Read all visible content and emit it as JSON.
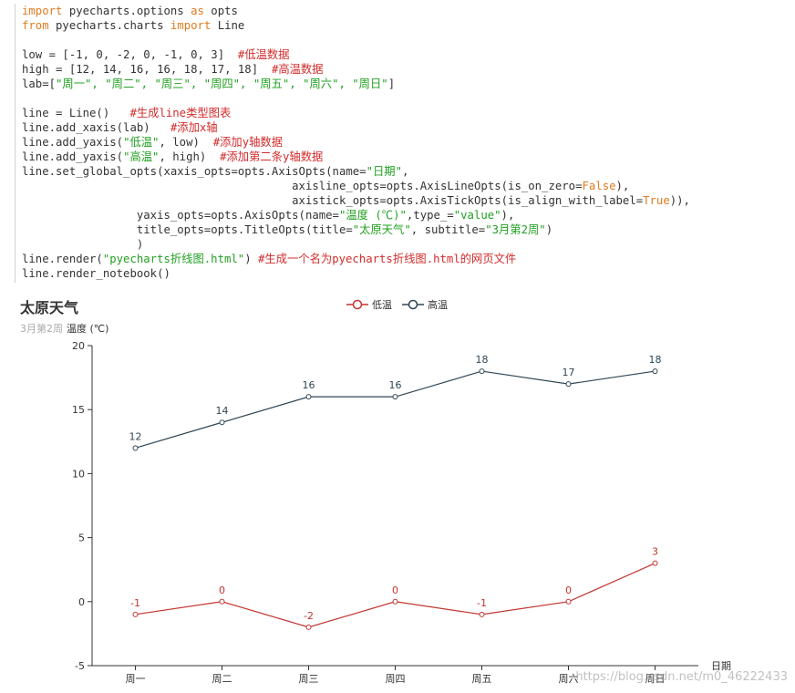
{
  "code_lines": [
    [
      {
        "t": "import",
        "c": "kw"
      },
      {
        "t": " pyecharts.options ",
        "c": ""
      },
      {
        "t": "as",
        "c": "kw"
      },
      {
        "t": " opts",
        "c": ""
      }
    ],
    [
      {
        "t": "from",
        "c": "kw"
      },
      {
        "t": " pyecharts.charts ",
        "c": ""
      },
      {
        "t": "import",
        "c": "kw"
      },
      {
        "t": " Line",
        "c": ""
      }
    ],
    [],
    [
      {
        "t": "low = [-1, 0, -2, 0, -1, 0, 3]  ",
        "c": ""
      },
      {
        "t": "#低温数据",
        "c": "cm"
      }
    ],
    [
      {
        "t": "high = [12, 14, 16, 16, 18, 17, 18]  ",
        "c": ""
      },
      {
        "t": "#高温数据",
        "c": "cm"
      }
    ],
    [
      {
        "t": "lab=[",
        "c": ""
      },
      {
        "t": "\"周一\", \"周二\", \"周三\", \"周四\", \"周五\", \"周六\", \"周日\"",
        "c": "str"
      },
      {
        "t": "]",
        "c": ""
      }
    ],
    [],
    [
      {
        "t": "line = Line()   ",
        "c": ""
      },
      {
        "t": "#生成line类型图表",
        "c": "cm"
      }
    ],
    [
      {
        "t": "line.add_xaxis(lab)   ",
        "c": ""
      },
      {
        "t": "#添加x轴",
        "c": "cm"
      }
    ],
    [
      {
        "t": "line.add_yaxis(",
        "c": ""
      },
      {
        "t": "\"低温\"",
        "c": "str"
      },
      {
        "t": ", low)  ",
        "c": ""
      },
      {
        "t": "#添加y轴数据",
        "c": "cm"
      }
    ],
    [
      {
        "t": "line.add_yaxis(",
        "c": ""
      },
      {
        "t": "\"高温\"",
        "c": "str"
      },
      {
        "t": ", high)  ",
        "c": ""
      },
      {
        "t": "#添加第二条y轴数据",
        "c": "cm"
      }
    ],
    [
      {
        "t": "line.set_global_opts(xaxis_opts=opts.AxisOpts(name=",
        "c": ""
      },
      {
        "t": "\"日期\"",
        "c": "str"
      },
      {
        "t": ",",
        "c": ""
      }
    ],
    [
      {
        "t": "                                        axisline_opts=opts.AxisLineOpts(is_on_zero=",
        "c": ""
      },
      {
        "t": "False",
        "c": "bool"
      },
      {
        "t": "),",
        "c": ""
      }
    ],
    [
      {
        "t": "                                        axistick_opts=opts.AxisTickOpts(is_align_with_label=",
        "c": ""
      },
      {
        "t": "True",
        "c": "bool"
      },
      {
        "t": ")),",
        "c": ""
      }
    ],
    [
      {
        "t": "                 yaxis_opts=opts.AxisOpts(name=",
        "c": ""
      },
      {
        "t": "\"温度 (℃)\"",
        "c": "str"
      },
      {
        "t": ",type_=",
        "c": ""
      },
      {
        "t": "\"value\"",
        "c": "str"
      },
      {
        "t": "),",
        "c": ""
      }
    ],
    [
      {
        "t": "                 title_opts=opts.TitleOpts(title=",
        "c": ""
      },
      {
        "t": "\"太原天气\"",
        "c": "str"
      },
      {
        "t": ", subtitle=",
        "c": ""
      },
      {
        "t": "\"3月第2周\"",
        "c": "str"
      },
      {
        "t": ")",
        "c": ""
      }
    ],
    [
      {
        "t": "                 )",
        "c": ""
      }
    ],
    [
      {
        "t": "line.render(",
        "c": ""
      },
      {
        "t": "\"pyecharts折线图.html\"",
        "c": "str"
      },
      {
        "t": ") ",
        "c": ""
      },
      {
        "t": "#生成一个名为pyecharts折线图.html的网页文件",
        "c": "cm"
      }
    ],
    [
      {
        "t": "line.render_notebook()",
        "c": ""
      }
    ]
  ],
  "chart_data": {
    "type": "line",
    "title": "太原天气",
    "subtitle": "3月第2周",
    "xlabel": "日期",
    "ylabel": "温度 (℃)",
    "categories": [
      "周一",
      "周二",
      "周三",
      "周四",
      "周五",
      "周六",
      "周日"
    ],
    "ylim": [
      -5,
      20
    ],
    "yticks": [
      -5,
      0,
      5,
      10,
      15,
      20
    ],
    "series": [
      {
        "name": "低温",
        "values": [
          -1,
          0,
          -2,
          0,
          -1,
          0,
          3
        ],
        "color": "#c23531"
      },
      {
        "name": "高温",
        "values": [
          12,
          14,
          16,
          16,
          18,
          17,
          18
        ],
        "color": "#2f4554"
      }
    ],
    "legend_position": "top-center",
    "grid": false
  },
  "watermark": "https://blog.csdn.net/m0_46222433",
  "colors": {
    "low": "#c23531",
    "high": "#2f4554",
    "axis": "#333333"
  }
}
